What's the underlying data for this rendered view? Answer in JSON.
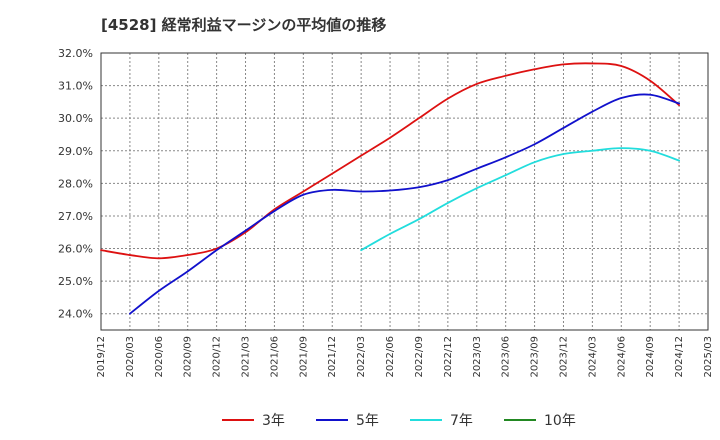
{
  "title": "[4528]  経常利益マージンの平均値の推移",
  "chart_data": {
    "type": "line",
    "x_ticks": [
      "2019/12",
      "2020/03",
      "2020/06",
      "2020/09",
      "2020/12",
      "2021/03",
      "2021/06",
      "2021/09",
      "2021/12",
      "2022/03",
      "2022/06",
      "2022/09",
      "2022/12",
      "2023/03",
      "2023/06",
      "2023/09",
      "2023/12",
      "2024/03",
      "2024/06",
      "2024/09",
      "2024/12",
      "2025/03"
    ],
    "y_ticks": [
      "24.0%",
      "25.0%",
      "26.0%",
      "27.0%",
      "28.0%",
      "29.0%",
      "30.0%",
      "31.0%",
      "32.0%"
    ],
    "ylim": [
      23.5,
      32.0
    ],
    "grid": true,
    "legend_position": "bottom",
    "series": [
      {
        "name": "3年",
        "color": "#dd1111",
        "x": [
          "2019/12",
          "2020/03",
          "2020/06",
          "2020/09",
          "2020/12",
          "2021/03",
          "2021/06",
          "2021/09",
          "2021/12",
          "2022/03",
          "2022/06",
          "2022/09",
          "2022/12",
          "2023/03",
          "2023/06",
          "2023/09",
          "2023/12",
          "2024/03",
          "2024/06",
          "2024/09",
          "2024/12"
        ],
        "values": [
          25.95,
          25.8,
          25.7,
          25.8,
          26.0,
          26.5,
          27.2,
          27.75,
          28.3,
          28.85,
          29.4,
          30.0,
          30.6,
          31.05,
          31.3,
          31.5,
          31.65,
          31.68,
          31.6,
          31.15,
          30.4
        ]
      },
      {
        "name": "5年",
        "color": "#1111cc",
        "x": [
          "2020/03",
          "2020/06",
          "2020/09",
          "2020/12",
          "2021/03",
          "2021/06",
          "2021/09",
          "2021/12",
          "2022/03",
          "2022/06",
          "2022/09",
          "2022/12",
          "2023/03",
          "2023/06",
          "2023/09",
          "2023/12",
          "2024/03",
          "2024/06",
          "2024/09",
          "2024/12"
        ],
        "values": [
          24.0,
          24.7,
          25.3,
          25.95,
          26.55,
          27.15,
          27.65,
          27.8,
          27.75,
          27.78,
          27.88,
          28.1,
          28.45,
          28.8,
          29.2,
          29.7,
          30.2,
          30.62,
          30.72,
          30.45
        ]
      },
      {
        "name": "7年",
        "color": "#22dddd",
        "x": [
          "2022/03",
          "2022/06",
          "2022/09",
          "2022/12",
          "2023/03",
          "2023/06",
          "2023/09",
          "2023/12",
          "2024/03",
          "2024/06",
          "2024/09",
          "2024/12"
        ],
        "values": [
          25.95,
          26.45,
          26.9,
          27.4,
          27.85,
          28.25,
          28.65,
          28.9,
          29.0,
          29.08,
          29.0,
          28.7
        ]
      },
      {
        "name": "10年",
        "color": "#228822",
        "x": [],
        "values": []
      }
    ]
  }
}
